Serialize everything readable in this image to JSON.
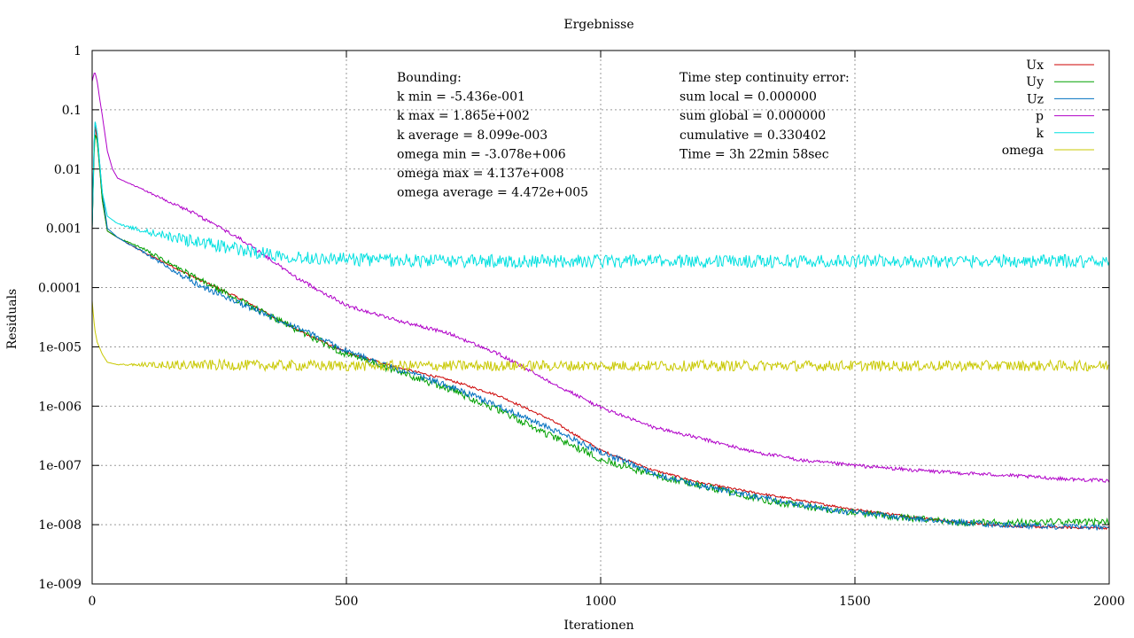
{
  "chart_data": {
    "type": "line",
    "title": "Ergebnisse",
    "xlabel": "Iterationen",
    "ylabel": "Residuals",
    "xlim": [
      0,
      2000
    ],
    "ylim": [
      1e-09,
      1
    ],
    "yscale": "log",
    "grid": true,
    "legend_position": "top-right",
    "x_ticks": [
      {
        "value": 0,
        "label": "0"
      },
      {
        "value": 500,
        "label": "500"
      },
      {
        "value": 1000,
        "label": "1000"
      },
      {
        "value": 1500,
        "label": "1500"
      },
      {
        "value": 2000,
        "label": "2000"
      }
    ],
    "y_ticks": [
      {
        "value": 1,
        "label": "1"
      },
      {
        "value": 0.1,
        "label": "0.1"
      },
      {
        "value": 0.01,
        "label": "0.01"
      },
      {
        "value": 0.001,
        "label": "0.001"
      },
      {
        "value": 0.0001,
        "label": "0.0001"
      },
      {
        "value": 1e-05,
        "label": "1e-005"
      },
      {
        "value": 1e-06,
        "label": "1e-006"
      },
      {
        "value": 1e-07,
        "label": "1e-007"
      },
      {
        "value": 1e-08,
        "label": "1e-008"
      },
      {
        "value": 1e-09,
        "label": "1e-009"
      }
    ],
    "annotations": {
      "bounding": [
        "Bounding:",
        "k min = -5.436e-001",
        "k max = 1.865e+002",
        "k average = 8.099e-003",
        "omega min = -3.078e+006",
        "omega max = 4.137e+008",
        "omega average = 4.472e+005"
      ],
      "continuity": [
        "Time step continuity error:",
        "sum local   = 0.000000",
        "sum global = 0.000000",
        "cumulative = 0.330402",
        "Time = 3h 22min 58sec"
      ]
    },
    "series": [
      {
        "name": "Ux",
        "color": "#cc0000",
        "noise": 0.02,
        "points": [
          [
            0,
            0.001
          ],
          [
            5,
            0.06
          ],
          [
            10,
            0.03
          ],
          [
            15,
            0.01
          ],
          [
            20,
            0.003
          ],
          [
            30,
            0.0009
          ],
          [
            50,
            0.0007
          ],
          [
            100,
            0.0004
          ],
          [
            200,
            0.00015
          ],
          [
            300,
            6e-05
          ],
          [
            400,
            2e-05
          ],
          [
            500,
            8e-06
          ],
          [
            600,
            4.5e-06
          ],
          [
            700,
            2.8e-06
          ],
          [
            800,
            1.5e-06
          ],
          [
            900,
            6e-07
          ],
          [
            1000,
            1.8e-07
          ],
          [
            1100,
            8.5e-08
          ],
          [
            1200,
            5e-08
          ],
          [
            1300,
            3.5e-08
          ],
          [
            1400,
            2.5e-08
          ],
          [
            1500,
            1.8e-08
          ],
          [
            1600,
            1.4e-08
          ],
          [
            1700,
            1.1e-08
          ],
          [
            1800,
            9.5e-09
          ],
          [
            1900,
            9e-09
          ],
          [
            2000,
            8.8e-09
          ]
        ]
      },
      {
        "name": "Uy",
        "color": "#00a000",
        "noise": 0.06,
        "points": [
          [
            0,
            0.001
          ],
          [
            5,
            0.04
          ],
          [
            10,
            0.03
          ],
          [
            15,
            0.01
          ],
          [
            20,
            0.003
          ],
          [
            30,
            0.0009
          ],
          [
            50,
            0.0007
          ],
          [
            100,
            0.00045
          ],
          [
            200,
            0.00015
          ],
          [
            300,
            5.5e-05
          ],
          [
            400,
            2e-05
          ],
          [
            500,
            7.5e-06
          ],
          [
            600,
            3.8e-06
          ],
          [
            700,
            2e-06
          ],
          [
            800,
            8.5e-07
          ],
          [
            900,
            3.2e-07
          ],
          [
            1000,
            1.3e-07
          ],
          [
            1100,
            7e-08
          ],
          [
            1200,
            4.5e-08
          ],
          [
            1300,
            2.8e-08
          ],
          [
            1400,
            2e-08
          ],
          [
            1500,
            1.6e-08
          ],
          [
            1600,
            1.3e-08
          ],
          [
            1700,
            1.1e-08
          ],
          [
            1800,
            1.1e-08
          ],
          [
            1900,
            1.1e-08
          ],
          [
            2000,
            1.1e-08
          ]
        ]
      },
      {
        "name": "Uz",
        "color": "#0070c0",
        "noise": 0.05,
        "points": [
          [
            0,
            0.001
          ],
          [
            5,
            0.07
          ],
          [
            10,
            0.04
          ],
          [
            15,
            0.012
          ],
          [
            20,
            0.004
          ],
          [
            30,
            0.001
          ],
          [
            50,
            0.0007
          ],
          [
            100,
            0.0004
          ],
          [
            200,
            0.00012
          ],
          [
            300,
            5e-05
          ],
          [
            400,
            2.2e-05
          ],
          [
            500,
            8.5e-06
          ],
          [
            600,
            4.2e-06
          ],
          [
            700,
            2.2e-06
          ],
          [
            800,
            1e-06
          ],
          [
            900,
            4.2e-07
          ],
          [
            1000,
            1.7e-07
          ],
          [
            1100,
            7.5e-08
          ],
          [
            1200,
            4.5e-08
          ],
          [
            1300,
            3e-08
          ],
          [
            1400,
            2.1e-08
          ],
          [
            1500,
            1.6e-08
          ],
          [
            1600,
            1.3e-08
          ],
          [
            1700,
            1.1e-08
          ],
          [
            1800,
            9.8e-09
          ],
          [
            1900,
            9.2e-09
          ],
          [
            2000,
            9e-09
          ]
        ]
      },
      {
        "name": "p",
        "color": "#b000c8",
        "noise": 0.03,
        "points": [
          [
            0,
            0.3
          ],
          [
            5,
            0.45
          ],
          [
            10,
            0.3
          ],
          [
            15,
            0.15
          ],
          [
            20,
            0.08
          ],
          [
            30,
            0.02
          ],
          [
            40,
            0.01
          ],
          [
            50,
            0.007
          ],
          [
            100,
            0.0045
          ],
          [
            200,
            0.0018
          ],
          [
            300,
            0.0006
          ],
          [
            400,
            0.00015
          ],
          [
            500,
            5e-05
          ],
          [
            600,
            2.8e-05
          ],
          [
            700,
            1.7e-05
          ],
          [
            800,
            7.5e-06
          ],
          [
            900,
            2.6e-06
          ],
          [
            1000,
            9.5e-07
          ],
          [
            1100,
            4.5e-07
          ],
          [
            1200,
            2.8e-07
          ],
          [
            1300,
            1.7e-07
          ],
          [
            1400,
            1.2e-07
          ],
          [
            1500,
            1e-07
          ],
          [
            1600,
            8.5e-08
          ],
          [
            1700,
            7.5e-08
          ],
          [
            1800,
            6.8e-08
          ],
          [
            1900,
            6e-08
          ],
          [
            2000,
            5.5e-08
          ]
        ]
      },
      {
        "name": "k",
        "color": "#00e0e0",
        "noise": 0.11,
        "points": [
          [
            0,
            0.001
          ],
          [
            5,
            0.07
          ],
          [
            10,
            0.04
          ],
          [
            15,
            0.012
          ],
          [
            20,
            0.004
          ],
          [
            30,
            0.0016
          ],
          [
            50,
            0.0012
          ],
          [
            100,
            0.0009
          ],
          [
            200,
            0.0006
          ],
          [
            300,
            0.00042
          ],
          [
            400,
            0.00033
          ],
          [
            500,
            0.0003
          ],
          [
            700,
            0.00028
          ],
          [
            1000,
            0.00028
          ],
          [
            1500,
            0.00028
          ],
          [
            2000,
            0.00028
          ]
        ]
      },
      {
        "name": "omega",
        "color": "#c8c800",
        "noise": 0.09,
        "points": [
          [
            0,
            6e-05
          ],
          [
            5,
            2e-05
          ],
          [
            10,
            1.2e-05
          ],
          [
            20,
            7.5e-06
          ],
          [
            30,
            5.5e-06
          ],
          [
            50,
            5e-06
          ],
          [
            100,
            5e-06
          ],
          [
            500,
            4.8e-06
          ],
          [
            1000,
            4.8e-06
          ],
          [
            1500,
            4.8e-06
          ],
          [
            2000,
            4.8e-06
          ]
        ]
      }
    ]
  }
}
